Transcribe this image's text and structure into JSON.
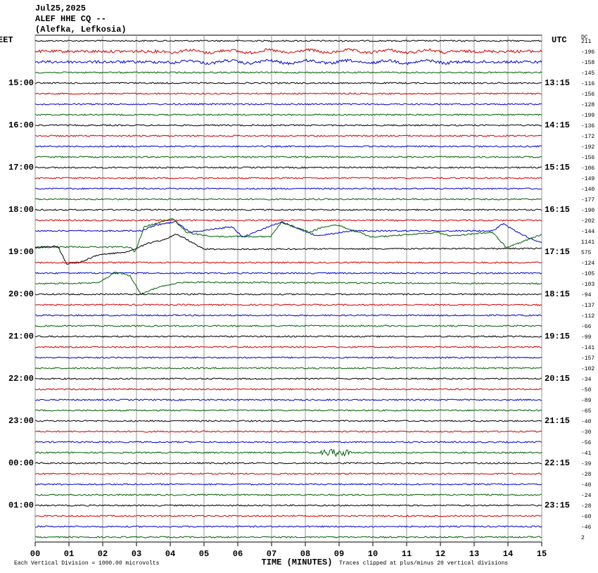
{
  "header": {
    "date": "Jul25,2025",
    "station": "ALEF HHE CQ --",
    "location": "(Alefka, Lefkosia)"
  },
  "left_axis": {
    "title": "EET",
    "labels": [
      null,
      null,
      null,
      null,
      "15:00",
      null,
      null,
      null,
      "16:00",
      null,
      null,
      null,
      "17:00",
      null,
      null,
      null,
      "18:00",
      null,
      null,
      null,
      "19:00",
      null,
      null,
      null,
      "20:00",
      null,
      null,
      null,
      "21:00",
      null,
      null,
      null,
      "22:00",
      null,
      null,
      null,
      "23:00",
      null,
      null,
      null,
      "00:00",
      null,
      null,
      null,
      "01:00",
      null,
      null,
      null
    ]
  },
  "right_axis": {
    "title": "UTC",
    "labels": [
      null,
      null,
      null,
      null,
      "13:15",
      null,
      null,
      null,
      "14:15",
      null,
      null,
      null,
      "15:15",
      null,
      null,
      null,
      "16:15",
      null,
      null,
      null,
      "17:15",
      null,
      null,
      null,
      "18:15",
      null,
      null,
      null,
      "19:15",
      null,
      null,
      null,
      "20:15",
      null,
      null,
      null,
      "21:15",
      null,
      null,
      null,
      "22:15",
      null,
      null,
      null,
      "23:15",
      null,
      null,
      null
    ]
  },
  "dc_offsets": {
    "title": "DC",
    "values": [
      211,
      -196,
      -158,
      -145,
      -116,
      -156,
      -128,
      -199,
      -136,
      -172,
      -192,
      -156,
      -106,
      -149,
      -140,
      -177,
      -190,
      -202,
      -144,
      1141,
      575,
      -124,
      -105,
      -103,
      -94,
      -137,
      -112,
      -66,
      -99,
      -141,
      -157,
      -102,
      -34,
      -50,
      -89,
      -65,
      -40,
      -30,
      -56,
      -41,
      -39,
      -28,
      -40,
      -24,
      -28,
      -60,
      -46,
      2
    ]
  },
  "x_axis": {
    "title": "TIME (MINUTES)",
    "ticks": [
      "00",
      "01",
      "02",
      "03",
      "04",
      "05",
      "06",
      "07",
      "08",
      "09",
      "10",
      "11",
      "12",
      "13",
      "14",
      "15"
    ]
  },
  "trace_colors": [
    "#000000",
    "#d00000",
    "#0000d0",
    "#006000"
  ],
  "footer": {
    "scale": "Each Vertical Division = 1000.00 microvolts",
    "clip": "Traces clipped at plus/minus 20 vertical divisions"
  }
}
